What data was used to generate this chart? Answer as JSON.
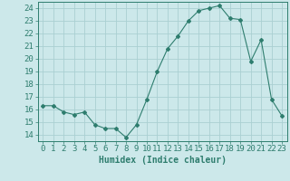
{
  "x": [
    0,
    1,
    2,
    3,
    4,
    5,
    6,
    7,
    8,
    9,
    10,
    11,
    12,
    13,
    14,
    15,
    16,
    17,
    18,
    19,
    20,
    21,
    22,
    23
  ],
  "y": [
    16.3,
    16.3,
    15.8,
    15.6,
    15.8,
    14.8,
    14.5,
    14.5,
    13.8,
    14.8,
    16.8,
    19.0,
    20.8,
    21.8,
    23.0,
    23.8,
    24.0,
    24.2,
    23.2,
    23.1,
    19.8,
    21.5,
    16.8,
    15.5
  ],
  "line_color": "#2e7d6e",
  "marker": "D",
  "marker_size": 2.0,
  "bg_color": "#cce8ea",
  "grid_color": "#aacfd2",
  "xlabel": "Humidex (Indice chaleur)",
  "xlim": [
    -0.5,
    23.5
  ],
  "ylim": [
    13.5,
    24.5
  ],
  "yticks": [
    14,
    15,
    16,
    17,
    18,
    19,
    20,
    21,
    22,
    23,
    24
  ],
  "xticks": [
    0,
    1,
    2,
    3,
    4,
    5,
    6,
    7,
    8,
    9,
    10,
    11,
    12,
    13,
    14,
    15,
    16,
    17,
    18,
    19,
    20,
    21,
    22,
    23
  ],
  "tick_color": "#2e7d6e",
  "label_color": "#2e7d6e",
  "font_size": 6.5
}
